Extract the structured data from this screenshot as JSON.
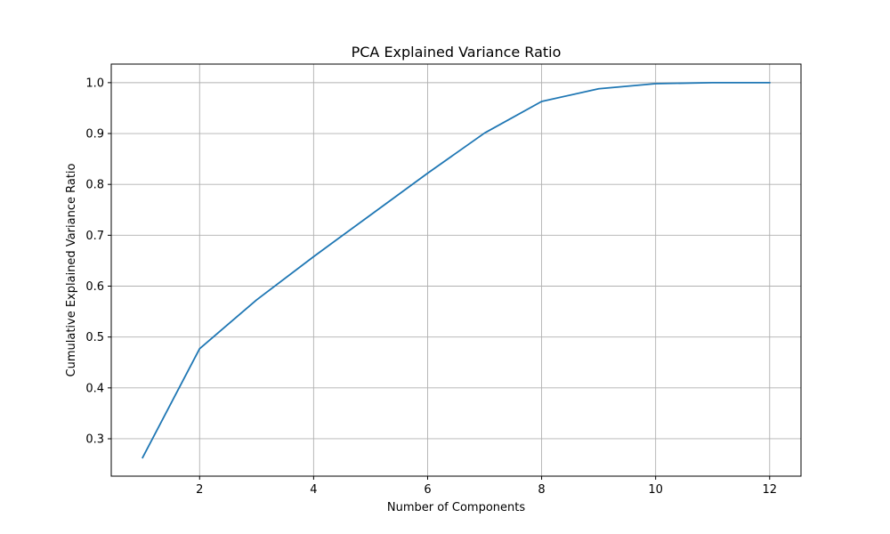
{
  "chart_data": {
    "type": "line",
    "title": "PCA Explained Variance Ratio",
    "xlabel": "Number of Components",
    "ylabel": "Cumulative Explained Variance Ratio",
    "xlim": [
      0.45,
      12.55
    ],
    "ylim": [
      0.2265,
      1.0365
    ],
    "xticks": [
      2,
      4,
      6,
      8,
      10,
      12
    ],
    "yticks": [
      0.3,
      0.4,
      0.5,
      0.6,
      0.7,
      0.8,
      0.9,
      1.0
    ],
    "xtick_labels": [
      "2",
      "4",
      "6",
      "8",
      "10",
      "12"
    ],
    "ytick_labels": [
      "0.3",
      "0.4",
      "0.5",
      "0.6",
      "0.7",
      "0.8",
      "0.9",
      "1.0"
    ],
    "grid": true,
    "series": [
      {
        "x": [
          1,
          2,
          3,
          4,
          5,
          6,
          7,
          8,
          9,
          10,
          11,
          12
        ],
        "values": [
          0.263,
          0.477,
          0.573,
          0.658,
          0.74,
          0.822,
          0.901,
          0.963,
          0.988,
          0.998,
          1.0,
          1.0
        ],
        "color": "#1f77b4"
      }
    ]
  }
}
